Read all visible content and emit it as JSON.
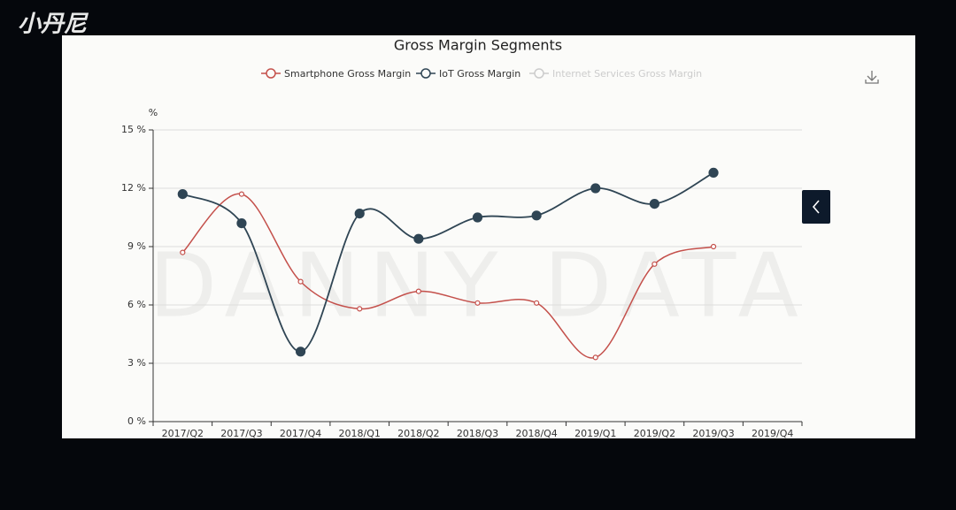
{
  "chart_data": {
    "type": "line",
    "logo": "小丹尼",
    "title": "Gross Margin Segments",
    "watermark": "DANNY DATA",
    "y_label": "%",
    "categories": [
      "2017/Q2",
      "2017/Q3",
      "2017/Q4",
      "2018/Q1",
      "2018/Q2",
      "2018/Q3",
      "2018/Q4",
      "2019/Q1",
      "2019/Q2",
      "2019/Q3",
      "2019/Q4"
    ],
    "series": [
      {
        "name": "Smartphone Gross Margin",
        "color": "#c4504b",
        "visible": true,
        "values": [
          8.7,
          11.7,
          7.2,
          5.8,
          6.7,
          6.1,
          6.1,
          3.3,
          8.1,
          9.0,
          null
        ]
      },
      {
        "name": "IoT Gross Margin",
        "color": "#2f4554",
        "visible": true,
        "values": [
          11.7,
          10.2,
          3.6,
          10.7,
          9.4,
          10.5,
          10.6,
          12.0,
          11.2,
          12.8,
          null
        ]
      },
      {
        "name": "Internet Services Gross Margin",
        "color": "#cccccc",
        "visible": false,
        "values": [
          null,
          null,
          null,
          null,
          null,
          null,
          null,
          null,
          null,
          null,
          null
        ]
      }
    ],
    "ylim": [
      0,
      15
    ],
    "yticks": [
      {
        "value": 0,
        "label": "0 %"
      },
      {
        "value": 3,
        "label": "3 %"
      },
      {
        "value": 6,
        "label": "6 %"
      },
      {
        "value": 9,
        "label": "9 %"
      },
      {
        "value": 12,
        "label": "12 %"
      },
      {
        "value": 15,
        "label": "15 %"
      }
    ],
    "grid": true
  }
}
